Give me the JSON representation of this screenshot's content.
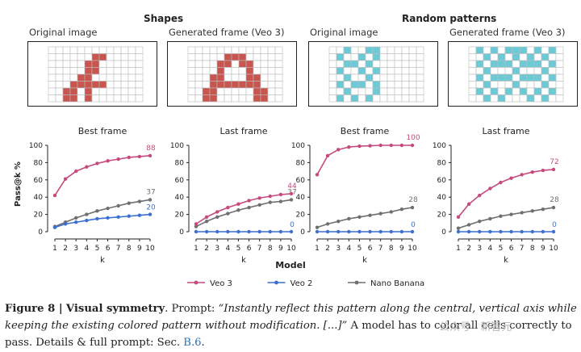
{
  "figure": {
    "section_titles": [
      "Shapes",
      "Random patterns"
    ],
    "panels": [
      {
        "label": "Original image",
        "grid": {
          "cols": 13,
          "rows": 8,
          "color": "#c8564f"
        }
      },
      {
        "label": "Generated frame (Veo 3)",
        "grid": {
          "cols": 13,
          "rows": 8,
          "color": "#c8564f"
        }
      },
      {
        "label": "Original image",
        "grid": {
          "cols": 13,
          "rows": 8,
          "color": "#6ccad6"
        }
      },
      {
        "label": "Generated frame (Veo 3)",
        "grid": {
          "cols": 13,
          "rows": 8,
          "color": "#6ccad6"
        }
      }
    ],
    "shared_xlabel": "Model",
    "shared_ylabel": "Pass@k %"
  },
  "chart_data": [
    {
      "type": "line",
      "title": "Best frame",
      "xlabel": "k",
      "ylabel": "Pass@k %",
      "x": [
        1,
        2,
        3,
        4,
        5,
        6,
        7,
        8,
        9,
        10
      ],
      "ylim": [
        0,
        100
      ],
      "yticks": [
        0,
        20,
        40,
        60,
        80,
        100
      ],
      "series": [
        {
          "name": "Veo 3",
          "color": "#c64a7e",
          "values": [
            42,
            61,
            70,
            75,
            79,
            82,
            84,
            86,
            87,
            88
          ],
          "end_label": "88"
        },
        {
          "name": "Veo 2",
          "color": "#3b6fd1",
          "values": [
            5,
            9,
            11,
            13,
            15,
            16,
            17,
            18,
            19,
            20
          ],
          "end_label": "20"
        },
        {
          "name": "Nano Banana",
          "color": "#6f6f6f",
          "values": [
            6,
            11,
            16,
            20,
            24,
            27,
            30,
            33,
            35,
            37
          ],
          "end_label": "37"
        }
      ]
    },
    {
      "type": "line",
      "title": "Last frame",
      "xlabel": "k",
      "ylabel": "",
      "x": [
        1,
        2,
        3,
        4,
        5,
        6,
        7,
        8,
        9,
        10
      ],
      "ylim": [
        0,
        100
      ],
      "yticks": [
        0,
        20,
        40,
        60,
        80,
        100
      ],
      "series": [
        {
          "name": "Veo 3",
          "color": "#c64a7e",
          "values": [
            9,
            17,
            23,
            28,
            32,
            36,
            39,
            41,
            43,
            44
          ],
          "end_label": "44"
        },
        {
          "name": "Veo 2",
          "color": "#3b6fd1",
          "values": [
            0,
            0,
            0,
            0,
            0,
            0,
            0,
            0,
            0,
            0
          ],
          "end_label": "0"
        },
        {
          "name": "Nano Banana",
          "color": "#6f6f6f",
          "values": [
            6,
            12,
            17,
            21,
            25,
            28,
            31,
            34,
            35,
            37
          ],
          "end_label": "37"
        }
      ]
    },
    {
      "type": "line",
      "title": "Best frame",
      "xlabel": "k",
      "ylabel": "",
      "x": [
        1,
        2,
        3,
        4,
        5,
        6,
        7,
        8,
        9,
        10
      ],
      "ylim": [
        0,
        100
      ],
      "yticks": [
        0,
        20,
        40,
        60,
        80,
        100
      ],
      "series": [
        {
          "name": "Veo 3",
          "color": "#c64a7e",
          "values": [
            66,
            88,
            95,
            98,
            99,
            99.5,
            100,
            100,
            100,
            100
          ],
          "end_label": "100"
        },
        {
          "name": "Veo 2",
          "color": "#3b6fd1",
          "values": [
            0,
            0,
            0,
            0,
            0,
            0,
            0,
            0,
            0,
            0
          ],
          "end_label": "0"
        },
        {
          "name": "Nano Banana",
          "color": "#6f6f6f",
          "values": [
            5,
            9,
            12,
            15,
            17,
            19,
            21,
            23,
            26,
            28
          ],
          "end_label": "28"
        }
      ]
    },
    {
      "type": "line",
      "title": "Last frame",
      "xlabel": "k",
      "ylabel": "",
      "x": [
        1,
        2,
        3,
        4,
        5,
        6,
        7,
        8,
        9,
        10
      ],
      "ylim": [
        0,
        100
      ],
      "yticks": [
        0,
        20,
        40,
        60,
        80,
        100
      ],
      "series": [
        {
          "name": "Veo 3",
          "color": "#c64a7e",
          "values": [
            17,
            32,
            42,
            50,
            57,
            62,
            66,
            69,
            71,
            72
          ],
          "end_label": "72"
        },
        {
          "name": "Veo 2",
          "color": "#3b6fd1",
          "values": [
            0,
            0,
            0,
            0,
            0,
            0,
            0,
            0,
            0,
            0
          ],
          "end_label": "0"
        },
        {
          "name": "Nano Banana",
          "color": "#6f6f6f",
          "values": [
            4,
            8,
            12,
            15,
            18,
            20,
            22,
            24,
            26,
            28
          ],
          "end_label": "28"
        }
      ]
    }
  ],
  "legend": [
    {
      "name": "Veo 3",
      "color": "#c64a7e"
    },
    {
      "name": "Veo 2",
      "color": "#3b6fd1"
    },
    {
      "name": "Nano Banana",
      "color": "#6f6f6f"
    }
  ],
  "caption": {
    "figure_label": "Figure 8 |",
    "bold_title": "Visual symmetry",
    "after_title": ". Prompt: ",
    "prompt_italic": "“Instantly reflect this pattern along the central, vertical axis while keeping the existing colored pattern without modification. [...]”",
    "rest": " A model has to color all cells correctly to pass. Details & full prompt: Sec. ",
    "link": "B.6",
    "end": "."
  },
  "watermark": "公众号 · 新智元"
}
